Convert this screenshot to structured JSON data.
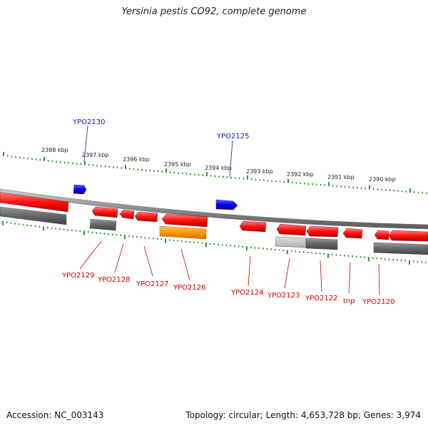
{
  "title": "Yersinia pestis CO92, complete genome",
  "footer": {
    "accession": "Accession: NC_003143",
    "summary": "Topology: circular; Length: 4,653,728 bp; Genes: 3,974"
  },
  "colors": {
    "gene_forward": "#0000dd",
    "gene_reverse": "#ff1010",
    "gene_highlight": "#ff9900",
    "label_forward": "#1a1aa8",
    "label_reverse": "#cc0000",
    "tick": "#1a8a1a",
    "backbone": "#8a8a8a"
  },
  "scale_labels": [
    "2398 kbp",
    "2397 kbp",
    "2396 kbp",
    "2395 kbp",
    "2394 kbp",
    "2393 kbp",
    "2392 kbp",
    "2391 kbp",
    "2390 kbp"
  ],
  "forward_gene_labels": [
    "YPO2130",
    "YPO2125"
  ],
  "reverse_gene_labels": [
    "YPO2129",
    "YPO2128",
    "YPO2127",
    "YPO2126",
    "YPO2124",
    "YPO2123",
    "YPO2122",
    "tnp",
    "YPO2120"
  ]
}
